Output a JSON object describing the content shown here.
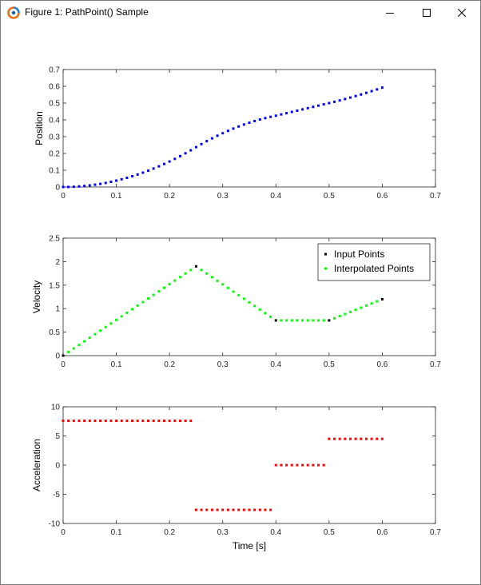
{
  "window": {
    "title": "Figure 1: PathPoint() Sample",
    "icon": "octave-logo-icon",
    "buttons": [
      "minimize-icon",
      "maximize-icon",
      "close-icon"
    ]
  },
  "colors": {
    "position_series": "#0000ff",
    "velocity_input": "#000000",
    "velocity_interpolated": "#00ff00",
    "acceleration_series": "#ff0000"
  },
  "chart_data": [
    {
      "type": "scatter",
      "title": "",
      "xlabel": "",
      "ylabel": "Position",
      "xlim": [
        0,
        0.7
      ],
      "ylim": [
        0,
        0.7
      ],
      "xticks": [
        "0",
        "0.1",
        "0.2",
        "0.3",
        "0.4",
        "0.5",
        "0.6",
        "0.7"
      ],
      "yticks": [
        "0",
        "0.1",
        "0.2",
        "0.3",
        "0.4",
        "0.5",
        "0.6",
        "0.7"
      ],
      "grid": false,
      "series": [
        {
          "color": "#0000ff",
          "x": [
            0,
            0.01,
            0.02,
            0.03,
            0.04,
            0.05,
            0.06,
            0.07,
            0.08,
            0.09,
            0.1,
            0.11,
            0.12,
            0.13,
            0.14,
            0.15,
            0.16,
            0.17,
            0.18,
            0.19,
            0.2,
            0.21,
            0.22,
            0.23,
            0.24,
            0.25,
            0.26,
            0.27,
            0.28,
            0.29,
            0.3,
            0.31,
            0.32,
            0.33,
            0.34,
            0.35,
            0.36,
            0.37,
            0.38,
            0.39,
            0.4,
            0.41,
            0.42,
            0.43,
            0.44,
            0.45,
            0.46,
            0.47,
            0.48,
            0.49,
            0.5,
            0.51,
            0.52,
            0.53,
            0.54,
            0.55,
            0.56,
            0.57,
            0.58,
            0.59,
            0.6
          ],
          "y": [
            0.0,
            0.0004,
            0.0015,
            0.0034,
            0.0061,
            0.0095,
            0.0137,
            0.0186,
            0.0243,
            0.0308,
            0.038,
            0.046,
            0.0547,
            0.0642,
            0.0745,
            0.0855,
            0.0973,
            0.1098,
            0.1231,
            0.1372,
            0.152,
            0.1676,
            0.1839,
            0.201,
            0.2189,
            0.2375,
            0.2558,
            0.2732,
            0.2898,
            0.3056,
            0.3206,
            0.3347,
            0.3481,
            0.3606,
            0.3722,
            0.3831,
            0.3931,
            0.4022,
            0.4106,
            0.4181,
            0.4248,
            0.4325,
            0.44,
            0.4475,
            0.455,
            0.4625,
            0.47,
            0.4775,
            0.485,
            0.4925,
            0.5,
            0.5077,
            0.5158,
            0.5241,
            0.5329,
            0.5419,
            0.5513,
            0.561,
            0.5711,
            0.5815,
            0.5922
          ]
        }
      ]
    },
    {
      "type": "scatter",
      "title": "",
      "xlabel": "",
      "ylabel": "Velocity",
      "xlim": [
        0,
        0.7
      ],
      "ylim": [
        0,
        2.5
      ],
      "xticks": [
        "0",
        "0.1",
        "0.2",
        "0.3",
        "0.4",
        "0.5",
        "0.6",
        "0.7"
      ],
      "yticks": [
        "0",
        "0.5",
        "1",
        "1.5",
        "2",
        "2.5"
      ],
      "grid": false,
      "legend": {
        "placement": "top-right",
        "entries": [
          "Input Points",
          "Interpolated Points"
        ]
      },
      "series": [
        {
          "name": "Input Points",
          "color": "#000000",
          "x": [
            0,
            0.25,
            0.4,
            0.5,
            0.6
          ],
          "y": [
            0,
            1.9,
            0.75,
            0.75,
            1.2
          ]
        },
        {
          "name": "Interpolated Points",
          "color": "#00ff00",
          "x": [
            0.01,
            0.02,
            0.03,
            0.04,
            0.05,
            0.06,
            0.07,
            0.08,
            0.09,
            0.1,
            0.11,
            0.12,
            0.13,
            0.14,
            0.15,
            0.16,
            0.17,
            0.18,
            0.19,
            0.2,
            0.21,
            0.22,
            0.23,
            0.24,
            0.26,
            0.27,
            0.28,
            0.29,
            0.3,
            0.31,
            0.32,
            0.33,
            0.34,
            0.35,
            0.36,
            0.37,
            0.38,
            0.39,
            0.41,
            0.42,
            0.43,
            0.44,
            0.45,
            0.46,
            0.47,
            0.48,
            0.49,
            0.51,
            0.52,
            0.53,
            0.54,
            0.55,
            0.56,
            0.57,
            0.58,
            0.59
          ],
          "y": [
            0.076,
            0.152,
            0.228,
            0.304,
            0.38,
            0.456,
            0.532,
            0.608,
            0.684,
            0.76,
            0.836,
            0.912,
            0.988,
            1.064,
            1.14,
            1.216,
            1.292,
            1.368,
            1.444,
            1.52,
            1.596,
            1.672,
            1.748,
            1.824,
            1.823,
            1.747,
            1.67,
            1.593,
            1.517,
            1.44,
            1.363,
            1.287,
            1.21,
            1.133,
            1.057,
            0.98,
            0.903,
            0.827,
            0.75,
            0.75,
            0.75,
            0.75,
            0.75,
            0.75,
            0.75,
            0.75,
            0.75,
            0.795,
            0.84,
            0.885,
            0.93,
            0.975,
            1.02,
            1.065,
            1.11,
            1.155
          ]
        }
      ]
    },
    {
      "type": "scatter",
      "title": "",
      "xlabel": "Time [s]",
      "ylabel": "Acceleration",
      "xlim": [
        0,
        0.7
      ],
      "ylim": [
        -10,
        10
      ],
      "xticks": [
        "0",
        "0.1",
        "0.2",
        "0.3",
        "0.4",
        "0.5",
        "0.6",
        "0.7"
      ],
      "yticks": [
        "-10",
        "-5",
        "0",
        "5",
        "10"
      ],
      "grid": false,
      "series": [
        {
          "color": "#ff0000",
          "x": [
            0,
            0.01,
            0.02,
            0.03,
            0.04,
            0.05,
            0.06,
            0.07,
            0.08,
            0.09,
            0.1,
            0.11,
            0.12,
            0.13,
            0.14,
            0.15,
            0.16,
            0.17,
            0.18,
            0.19,
            0.2,
            0.21,
            0.22,
            0.23,
            0.24,
            0.25,
            0.26,
            0.27,
            0.28,
            0.29,
            0.3,
            0.31,
            0.32,
            0.33,
            0.34,
            0.35,
            0.36,
            0.37,
            0.38,
            0.39,
            0.4,
            0.41,
            0.42,
            0.43,
            0.44,
            0.45,
            0.46,
            0.47,
            0.48,
            0.49,
            0.5,
            0.51,
            0.52,
            0.53,
            0.54,
            0.55,
            0.56,
            0.57,
            0.58,
            0.59,
            0.6
          ],
          "y": [
            7.6,
            7.6,
            7.6,
            7.6,
            7.6,
            7.6,
            7.6,
            7.6,
            7.6,
            7.6,
            7.6,
            7.6,
            7.6,
            7.6,
            7.6,
            7.6,
            7.6,
            7.6,
            7.6,
            7.6,
            7.6,
            7.6,
            7.6,
            7.6,
            7.6,
            -7.67,
            -7.67,
            -7.67,
            -7.67,
            -7.67,
            -7.67,
            -7.67,
            -7.67,
            -7.67,
            -7.67,
            -7.67,
            -7.67,
            -7.67,
            -7.67,
            -7.67,
            0,
            0,
            0,
            0,
            0,
            0,
            0,
            0,
            0,
            0,
            4.5,
            4.5,
            4.5,
            4.5,
            4.5,
            4.5,
            4.5,
            4.5,
            4.5,
            4.5,
            4.5
          ]
        }
      ]
    }
  ]
}
